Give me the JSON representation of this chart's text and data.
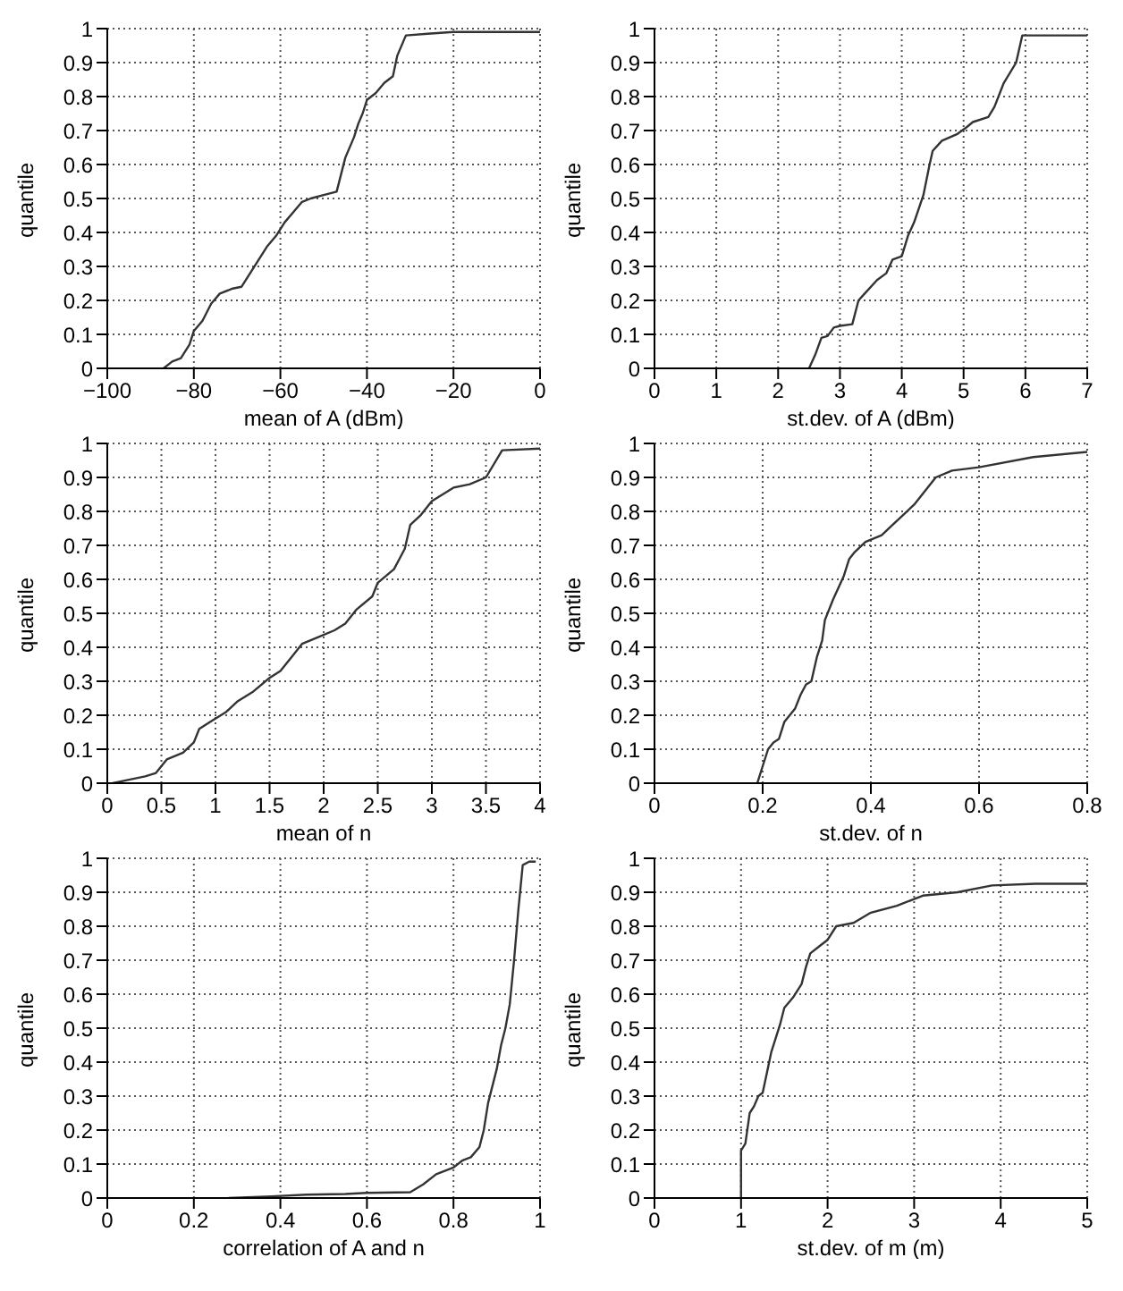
{
  "chart_data": [
    {
      "type": "line",
      "xlabel": "mean of A (dBm)",
      "ylabel": "quantile",
      "grid": true,
      "line_style": "solid",
      "xlim": [
        -100,
        0
      ],
      "xticks": [
        {
          "value": -100,
          "label": "−100"
        },
        {
          "value": -80,
          "label": "−80"
        },
        {
          "value": -60,
          "label": "−60"
        },
        {
          "value": -40,
          "label": "−40"
        },
        {
          "value": -20,
          "label": "−20"
        },
        0
      ],
      "ylim": [
        0,
        1
      ],
      "yticks": [
        0,
        0.1,
        0.2,
        0.3,
        0.4,
        0.5,
        0.6,
        0.7,
        0.8,
        0.9,
        1
      ],
      "series": [
        {
          "color": "#333333",
          "x": [
            -87,
            -85,
            -83,
            -81,
            -80,
            -78,
            -76,
            -74,
            -71,
            -69,
            -67,
            -65,
            -63,
            -61,
            -59,
            -57,
            -55,
            -53,
            -50,
            -47,
            -46,
            -45,
            -43,
            -42,
            -41,
            -40,
            -38,
            -36,
            -34,
            -33,
            -31,
            -26,
            -20,
            0
          ],
          "values": [
            0,
            0.02,
            0.03,
            0.07,
            0.11,
            0.14,
            0.19,
            0.22,
            0.235,
            0.24,
            0.28,
            0.32,
            0.36,
            0.39,
            0.43,
            0.46,
            0.49,
            0.5,
            0.51,
            0.52,
            0.57,
            0.62,
            0.68,
            0.72,
            0.75,
            0.79,
            0.81,
            0.84,
            0.86,
            0.92,
            0.98,
            0.985,
            0.99,
            0.99
          ]
        }
      ]
    },
    {
      "type": "line",
      "xlabel": "st.dev. of A (dBm)",
      "ylabel": "quantile",
      "grid": true,
      "line_style": "solid",
      "xlim": [
        0,
        7
      ],
      "xticks": [
        0,
        1,
        2,
        3,
        4,
        5,
        6,
        7
      ],
      "ylim": [
        0,
        1
      ],
      "yticks": [
        0,
        0.1,
        0.2,
        0.3,
        0.4,
        0.5,
        0.6,
        0.7,
        0.8,
        0.9,
        1
      ],
      "series": [
        {
          "color": "#333333",
          "x": [
            2.5,
            2.6,
            2.7,
            2.8,
            2.9,
            3.0,
            3.2,
            3.3,
            3.4,
            3.6,
            3.75,
            3.85,
            4.0,
            4.1,
            4.2,
            4.35,
            4.45,
            4.5,
            4.65,
            4.9,
            5.05,
            5.15,
            5.4,
            5.5,
            5.65,
            5.85,
            5.95,
            7
          ],
          "values": [
            0,
            0.04,
            0.09,
            0.095,
            0.12,
            0.125,
            0.13,
            0.2,
            0.22,
            0.26,
            0.28,
            0.32,
            0.33,
            0.39,
            0.43,
            0.51,
            0.6,
            0.64,
            0.67,
            0.69,
            0.71,
            0.725,
            0.74,
            0.77,
            0.84,
            0.9,
            0.98,
            0.98
          ]
        }
      ]
    },
    {
      "type": "line",
      "xlabel": "mean of n",
      "ylabel": "quantile",
      "grid": true,
      "line_style": "solid",
      "xlim": [
        0,
        4
      ],
      "xticks": [
        0,
        0.5,
        1,
        1.5,
        2,
        2.5,
        3,
        3.5,
        4
      ],
      "ylim": [
        0,
        1
      ],
      "yticks": [
        0,
        0.1,
        0.2,
        0.3,
        0.4,
        0.5,
        0.6,
        0.7,
        0.8,
        0.9,
        1
      ],
      "series": [
        {
          "color": "#333333",
          "x": [
            0.05,
            0.2,
            0.35,
            0.45,
            0.55,
            0.7,
            0.8,
            0.85,
            0.95,
            1.1,
            1.2,
            1.35,
            1.5,
            1.6,
            1.7,
            1.8,
            1.95,
            2.1,
            2.2,
            2.3,
            2.45,
            2.5,
            2.65,
            2.7,
            2.75,
            2.8,
            2.9,
            3.0,
            3.1,
            3.2,
            3.35,
            3.5,
            3.65,
            4
          ],
          "values": [
            0,
            0.01,
            0.02,
            0.03,
            0.07,
            0.09,
            0.12,
            0.16,
            0.18,
            0.21,
            0.24,
            0.27,
            0.31,
            0.33,
            0.37,
            0.41,
            0.43,
            0.45,
            0.47,
            0.51,
            0.55,
            0.59,
            0.63,
            0.66,
            0.69,
            0.76,
            0.79,
            0.83,
            0.85,
            0.87,
            0.88,
            0.9,
            0.98,
            0.985
          ]
        }
      ]
    },
    {
      "type": "line",
      "xlabel": "st.dev. of n",
      "ylabel": "quantile",
      "grid": true,
      "line_style": "solid",
      "xlim": [
        0,
        0.8
      ],
      "xticks": [
        0,
        0.2,
        0.4,
        0.6,
        0.8
      ],
      "ylim": [
        0,
        1
      ],
      "yticks": [
        0,
        0.1,
        0.2,
        0.3,
        0.4,
        0.5,
        0.6,
        0.7,
        0.8,
        0.9,
        1
      ],
      "series": [
        {
          "color": "#333333",
          "x": [
            0.19,
            0.2,
            0.21,
            0.22,
            0.23,
            0.24,
            0.26,
            0.27,
            0.28,
            0.29,
            0.3,
            0.31,
            0.315,
            0.33,
            0.35,
            0.36,
            0.37,
            0.39,
            0.42,
            0.44,
            0.46,
            0.48,
            0.5,
            0.52,
            0.55,
            0.6,
            0.7,
            0.8
          ],
          "values": [
            0,
            0.05,
            0.1,
            0.12,
            0.13,
            0.18,
            0.22,
            0.26,
            0.29,
            0.3,
            0.37,
            0.42,
            0.48,
            0.54,
            0.61,
            0.66,
            0.68,
            0.71,
            0.73,
            0.76,
            0.79,
            0.82,
            0.86,
            0.9,
            0.92,
            0.93,
            0.96,
            0.975
          ]
        }
      ]
    },
    {
      "type": "line",
      "xlabel": "correlation of A and n",
      "ylabel": "quantile",
      "grid": true,
      "line_style": "solid",
      "xlim": [
        0,
        1
      ],
      "xticks": [
        0,
        0.2,
        0.4,
        0.6,
        0.8,
        1
      ],
      "ylim": [
        0,
        1
      ],
      "yticks": [
        0,
        0.1,
        0.2,
        0.3,
        0.4,
        0.5,
        0.6,
        0.7,
        0.8,
        0.9,
        1
      ],
      "series": [
        {
          "color": "#333333",
          "x": [
            0.28,
            0.38,
            0.46,
            0.55,
            0.6,
            0.7,
            0.73,
            0.76,
            0.8,
            0.82,
            0.84,
            0.86,
            0.87,
            0.88,
            0.89,
            0.9,
            0.91,
            0.92,
            0.93,
            0.94,
            0.95,
            0.96,
            0.975,
            0.99
          ],
          "values": [
            0,
            0.005,
            0.01,
            0.012,
            0.015,
            0.017,
            0.04,
            0.07,
            0.09,
            0.11,
            0.12,
            0.15,
            0.2,
            0.28,
            0.33,
            0.38,
            0.45,
            0.5,
            0.57,
            0.7,
            0.85,
            0.98,
            0.99,
            0.99
          ]
        }
      ]
    },
    {
      "type": "line",
      "xlabel": "st.dev. of m (m)",
      "ylabel": "quantile",
      "grid": true,
      "line_style": "solid",
      "xlim": [
        0,
        5
      ],
      "xticks": [
        0,
        1,
        2,
        3,
        4,
        5
      ],
      "ylim": [
        0,
        1
      ],
      "yticks": [
        0,
        0.1,
        0.2,
        0.3,
        0.4,
        0.5,
        0.6,
        0.7,
        0.8,
        0.9,
        1
      ],
      "series": [
        {
          "color": "#333333",
          "x": [
            1.0,
            1.0,
            1.05,
            1.1,
            1.15,
            1.2,
            1.25,
            1.3,
            1.35,
            1.45,
            1.5,
            1.6,
            1.7,
            1.75,
            1.8,
            1.9,
            2.0,
            2.1,
            2.3,
            2.5,
            2.8,
            3.0,
            3.1,
            3.5,
            3.9,
            4.4,
            5
          ],
          "values": [
            0,
            0.14,
            0.16,
            0.25,
            0.27,
            0.3,
            0.31,
            0.37,
            0.43,
            0.51,
            0.56,
            0.59,
            0.63,
            0.68,
            0.72,
            0.74,
            0.76,
            0.8,
            0.81,
            0.84,
            0.86,
            0.88,
            0.89,
            0.9,
            0.92,
            0.925,
            0.925
          ]
        }
      ]
    }
  ]
}
